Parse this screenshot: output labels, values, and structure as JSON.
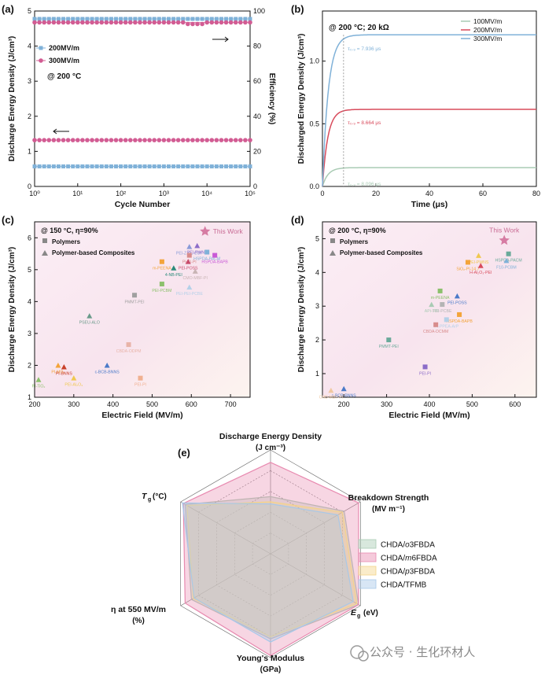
{
  "colors": {
    "blue": "#7fb1d8",
    "pink": "#d25c93",
    "green": "#a9cbb4",
    "red": "#d84b5c",
    "orange": "#f3a43a",
    "gray": "#8a8a8a",
    "purple": "#8c6cc8",
    "star": "#d67ca3"
  },
  "watermark": "公众号 · 生化环材人",
  "chart_data": [
    {
      "id": "a",
      "panel_label": "(a)",
      "type": "scatter",
      "xlabel": "Cycle Number",
      "ylabel": "Discharge Energy Density (J/cm³)",
      "y2label": "Efficiency (%)",
      "xscale": "log",
      "xlim": [
        1,
        100000
      ],
      "ylim": [
        0,
        5
      ],
      "y2lim": [
        0,
        100
      ],
      "xticks": [
        "10⁰",
        "10¹",
        "10²",
        "10³",
        "10⁴",
        "10⁵"
      ],
      "yticks": [
        "0",
        "1",
        "2",
        "3",
        "4",
        "5"
      ],
      "y2ticks": [
        "0",
        "20",
        "40",
        "60",
        "80",
        "100"
      ],
      "annotation": "@ 200 °C",
      "legend": [
        "200MV/m",
        "300MV/m"
      ],
      "series": [
        {
          "name": "200MV/m",
          "axis": "left",
          "value": 0.57,
          "color": "#7fb1d8",
          "marker": "square"
        },
        {
          "name": "300MV/m",
          "axis": "left",
          "value": 1.32,
          "color": "#d25c93",
          "marker": "circle"
        },
        {
          "name": "200MV/m efficiency",
          "axis": "right",
          "value": 95.5,
          "color": "#7fb1d8",
          "marker": "square"
        },
        {
          "name": "300MV/m efficiency",
          "axis": "right",
          "value": 93.5,
          "color": "#d25c93",
          "marker": "circle"
        }
      ]
    },
    {
      "id": "b",
      "panel_label": "(b)",
      "type": "line",
      "xlabel": "Time (μs)",
      "ylabel": "Discharged Energy Density (J/cm³)",
      "xlim": [
        0,
        80
      ],
      "ylim": [
        0,
        1.4
      ],
      "xticks": [
        "0",
        "20",
        "40",
        "60",
        "80"
      ],
      "yticks": [
        "0.0",
        "0.5",
        "1.0"
      ],
      "annotation": "@ 200 °C; 20 kΩ",
      "series": [
        {
          "name": "100MV/m",
          "plateau": 0.15,
          "tau": 2.1,
          "color": "#a9cbb4",
          "label": "τ₀.₉ = 8.096 μs"
        },
        {
          "name": "200MV/m",
          "plateau": 0.615,
          "tau": 2.0,
          "color": "#d84b5c",
          "label": "τ₀.₉ = 8.664 μs"
        },
        {
          "name": "300MV/m",
          "plateau": 1.21,
          "tau": 2.2,
          "color": "#7fb1d8",
          "label": "τ₀.₉ = 7.936 μs"
        }
      ]
    },
    {
      "id": "c",
      "panel_label": "(c)",
      "type": "scatter",
      "xlabel": "Electric Field (MV/m)",
      "ylabel": "Discharge Energy Density (J/cm³)",
      "xlim": [
        200,
        750
      ],
      "ylim": [
        1,
        6.5
      ],
      "xticks": [
        "200",
        "300",
        "400",
        "500",
        "600",
        "700"
      ],
      "yticks": [
        "1",
        "2",
        "3",
        "4",
        "5",
        "6"
      ],
      "annotation": "@ 150 °C, η=90%",
      "legend": [
        "Polymers",
        "Polymer-based Composites"
      ],
      "star": {
        "label": "This Work",
        "x": 635,
        "y": 6.2
      },
      "points": [
        {
          "x": 595,
          "y": 5.72,
          "m": "tri",
          "c": "#8a9ad8",
          "label": "PEI-Z-O₃-COF"
        },
        {
          "x": 615,
          "y": 5.75,
          "m": "tri",
          "c": "#8c6cc8",
          "label": "PEI-PWNS"
        },
        {
          "x": 640,
          "y": 5.55,
          "m": "sq",
          "c": "#7fb1d8",
          "label": "HSPDA-PACM"
        },
        {
          "x": 595,
          "y": 5.45,
          "m": "sq",
          "c": "#d88c8c",
          "label": "PHQ-PI"
        },
        {
          "x": 592,
          "y": 5.25,
          "m": "tri",
          "c": "#c84a6a",
          "label": "PEI-POSS"
        },
        {
          "x": 660,
          "y": 5.45,
          "m": "sq",
          "c": "#c95ad6",
          "label": "HSPDA-BAPB"
        },
        {
          "x": 525,
          "y": 5.25,
          "m": "sq",
          "c": "#f3a43a",
          "label": "m-PEENA"
        },
        {
          "x": 555,
          "y": 5.05,
          "m": "tri",
          "c": "#2a8a7a",
          "label": "4-NB-PEI"
        },
        {
          "x": 610,
          "y": 4.95,
          "m": "tri",
          "c": "#c8b4b4",
          "label": "CMO-MBF-PI"
        },
        {
          "x": 525,
          "y": 4.55,
          "m": "sq",
          "c": "#8cc06c",
          "label": "PEI-PCBM"
        },
        {
          "x": 595,
          "y": 4.45,
          "m": "tri",
          "c": "#b4d0e8",
          "label": "PEI-PEI-PCBE"
        },
        {
          "x": 455,
          "y": 4.2,
          "m": "sq",
          "c": "#a0a0a0",
          "label": "PMMT-PEI"
        },
        {
          "x": 340,
          "y": 3.55,
          "m": "tri",
          "c": "#6a9a8a",
          "label": "PSEU-ALO"
        },
        {
          "x": 440,
          "y": 2.65,
          "m": "sq",
          "c": "#e8b4a8",
          "label": "CBDA-ODPM"
        },
        {
          "x": 260,
          "y": 2.0,
          "m": "tri",
          "c": "#f3a43a",
          "label": "PI-MO₂"
        },
        {
          "x": 275,
          "y": 1.95,
          "m": "tri",
          "c": "#c8402a",
          "label": "PI-BNNS"
        },
        {
          "x": 385,
          "y": 2.0,
          "m": "tri",
          "c": "#4a7ac8",
          "label": "c-BCB-BNNS"
        },
        {
          "x": 300,
          "y": 1.6,
          "m": "tri",
          "c": "#f0c850",
          "label": "PEI-Al₂O₃"
        },
        {
          "x": 470,
          "y": 1.6,
          "m": "sq",
          "c": "#f0b090",
          "label": "PEI-PI"
        },
        {
          "x": 210,
          "y": 1.55,
          "m": "tri",
          "c": "#8cc06c",
          "label": "PI-TiO₂"
        }
      ]
    },
    {
      "id": "d",
      "panel_label": "(d)",
      "type": "scatter",
      "xlabel": "Electric Field (MV/m)",
      "ylabel": "Discharge Energy Density (J/cm³)",
      "xlim": [
        150,
        650
      ],
      "ylim": [
        0.3,
        5.5
      ],
      "xticks": [
        "200",
        "300",
        "400",
        "500",
        "600"
      ],
      "yticks": [
        "1",
        "2",
        "3",
        "4",
        "5"
      ],
      "annotation": "@ 200 °C, η=90%",
      "legend": [
        "Polymers",
        "Polymer-based Composites"
      ],
      "star": {
        "label": "This Work",
        "x": 575,
        "y": 4.95
      },
      "points": [
        {
          "x": 515,
          "y": 4.5,
          "m": "tri",
          "c": "#f0c850",
          "label": "PEI-PWNS"
        },
        {
          "x": 585,
          "y": 4.55,
          "m": "sq",
          "c": "#6aaa9a",
          "label": "HSPDA-PACM"
        },
        {
          "x": 490,
          "y": 4.3,
          "m": "sq",
          "c": "#f3a43a",
          "label": "SiO₂-PI-14.7"
        },
        {
          "x": 580,
          "y": 4.35,
          "m": "tri",
          "c": "#7fb1d8",
          "label": "F10-PCBM"
        },
        {
          "x": 520,
          "y": 4.2,
          "m": "tri",
          "c": "#d84b5c",
          "label": "H-Al₂O₃-PEI"
        },
        {
          "x": 425,
          "y": 3.45,
          "m": "sq",
          "c": "#8cc06c",
          "label": "m-PEENA"
        },
        {
          "x": 465,
          "y": 3.3,
          "m": "tri",
          "c": "#4a7ac8",
          "label": "PEI-POSS"
        },
        {
          "x": 430,
          "y": 3.05,
          "m": "sq",
          "c": "#b4b4b4",
          "label": "PEI-PCBE"
        },
        {
          "x": 405,
          "y": 3.05,
          "m": "tri",
          "c": "#a9cbb4",
          "label": "APi-TPI"
        },
        {
          "x": 470,
          "y": 2.75,
          "m": "sq",
          "c": "#f3a43a",
          "label": "HSPDA-BAPB"
        },
        {
          "x": 440,
          "y": 2.6,
          "m": "sq",
          "c": "#b4d0e8",
          "label": "PI-PPEA-ArP"
        },
        {
          "x": 415,
          "y": 2.45,
          "m": "sq",
          "c": "#d88c8c",
          "label": "CBDA-DCMM"
        },
        {
          "x": 305,
          "y": 2.0,
          "m": "sq",
          "c": "#6aaa9a",
          "label": "PMMT-PEI"
        },
        {
          "x": 390,
          "y": 1.2,
          "m": "sq",
          "c": "#8c6cc8",
          "label": "PEI-PI"
        },
        {
          "x": 200,
          "y": 0.55,
          "m": "tri",
          "c": "#4a7ac8",
          "label": "c-BCB-BNNS"
        },
        {
          "x": 170,
          "y": 0.5,
          "m": "tri",
          "c": "#f0c8a0",
          "label": "CHD-MBF-PI"
        }
      ]
    },
    {
      "id": "e",
      "panel_label": "(e)",
      "type": "radar",
      "axes": [
        {
          "label": "Discharge Energy Density",
          "unit": "(J cm⁻³)"
        },
        {
          "label": "Breakdown Strength",
          "unit": "(MV m⁻¹)"
        },
        {
          "label": "E",
          "sub": "g",
          "unit": "(eV)"
        },
        {
          "label": "Young's Modulus",
          "unit": "(GPa)"
        },
        {
          "label": "η at 550 MV/m",
          "unit": "(%)"
        },
        {
          "label": "T",
          "sub": "g",
          "unit": "(°C)"
        }
      ],
      "series": [
        {
          "name": "CHDA/o3FBDA",
          "italic": "o",
          "values": [
            0.55,
            0.82,
            0.98,
            0.82,
            0.88,
            0.95
          ],
          "color": "#a9cbb4"
        },
        {
          "name": "CHDA/m6FBDA",
          "italic": "m",
          "values": [
            0.88,
            0.98,
            0.98,
            0.98,
            0.95,
            0.97
          ],
          "color": "#e88ab0"
        },
        {
          "name": "CHDA/p3FBDA",
          "italic": "p",
          "values": [
            0.5,
            0.8,
            0.96,
            0.8,
            0.86,
            0.93
          ],
          "color": "#f3d48a"
        },
        {
          "name": "CHDA/TFMB",
          "italic": "",
          "values": [
            0.48,
            0.75,
            0.92,
            0.85,
            0.85,
            0.98
          ],
          "color": "#a8c8e8"
        }
      ]
    }
  ]
}
